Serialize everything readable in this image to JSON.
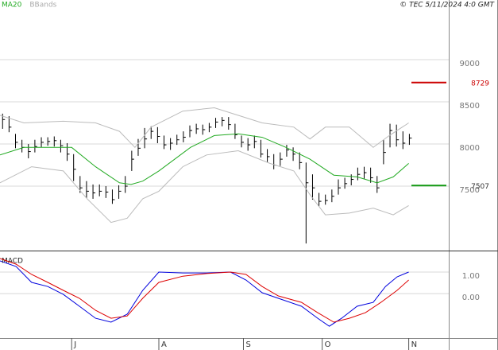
{
  "header": {
    "text": "© TEC 5/11/2024 4:0 GMT"
  },
  "chart_data": [
    {
      "type": "ohlc",
      "color": "#000000",
      "close": [
        8290,
        8200,
        8020,
        7960,
        7910,
        7970,
        8020,
        8030,
        8040,
        7980,
        7880,
        7700,
        7480,
        7440,
        7420,
        7440,
        7430,
        7340,
        7440,
        7500,
        7820,
        7950,
        8060,
        8150,
        8090,
        7990,
        8010,
        8050,
        8080,
        8160,
        8180,
        8170,
        8200,
        8260,
        8280,
        8230,
        8110,
        8020,
        7990,
        8030,
        7880,
        7850,
        7750,
        7820,
        7930,
        7880,
        7780,
        7540,
        7480,
        7320,
        7330,
        7380,
        7480,
        7530,
        7580,
        7640,
        7660,
        7600,
        7480,
        7900,
        8160,
        8050,
        8010,
        8070
      ],
      "high": [
        8360,
        8330,
        8120,
        8050,
        8000,
        8050,
        8080,
        8080,
        8090,
        8050,
        8010,
        7880,
        7620,
        7560,
        7520,
        7520,
        7500,
        7460,
        7510,
        7620,
        7920,
        8060,
        8190,
        8210,
        8200,
        8100,
        8070,
        8110,
        8150,
        8220,
        8240,
        8230,
        8250,
        8310,
        8320,
        8320,
        8240,
        8100,
        8070,
        8100,
        8050,
        7940,
        7880,
        7900,
        7990,
        7960,
        7900,
        7780,
        7640,
        7420,
        7400,
        7460,
        7580,
        7600,
        7640,
        7720,
        7730,
        7720,
        7620,
        8050,
        8240,
        8230,
        8150,
        8120
      ],
      "low": [
        8180,
        8140,
        7950,
        7900,
        7830,
        7900,
        7960,
        7980,
        7970,
        7900,
        7800,
        7560,
        7420,
        7360,
        7350,
        7380,
        7360,
        7290,
        7350,
        7420,
        7680,
        7860,
        7950,
        8060,
        8010,
        7940,
        7930,
        7990,
        8020,
        8080,
        8120,
        8110,
        8140,
        8190,
        8210,
        8170,
        8060,
        7960,
        7920,
        7950,
        7840,
        7780,
        7700,
        7740,
        7850,
        7800,
        7700,
        6820,
        7340,
        7260,
        7280,
        7310,
        7400,
        7470,
        7510,
        7570,
        7590,
        7540,
        7420,
        7760,
        7960,
        7970,
        7940,
        7990
      ],
      "overlays": [
        {
          "name": "MA20",
          "color": "#22aa22",
          "x": [
            -0.4,
            3.3,
            10.7,
            14.4,
            18.1,
            19.9,
            21.7,
            24.2,
            29.1,
            32.8,
            36.5,
            40.2,
            43.9,
            47.6,
            51.3,
            54.9,
            58,
            60.5,
            62.9
          ],
          "values": [
            7870,
            7960,
            7960,
            7730,
            7540,
            7520,
            7560,
            7680,
            7960,
            8100,
            8120,
            8080,
            7960,
            7820,
            7630,
            7610,
            7540,
            7610,
            7770
          ]
        },
        {
          "name": "BBands",
          "color": "#bbbbbb",
          "x": [
            -0.4,
            3.3,
            9.4,
            14.4,
            18.1,
            20.5,
            23,
            27.9,
            32.8,
            36.5,
            40.2,
            45.1,
            47.6,
            50,
            53.7,
            57.4,
            59.9,
            62.9
          ],
          "values": [
            8340,
            8250,
            8270,
            8250,
            8150,
            7960,
            8200,
            8390,
            8430,
            8340,
            8250,
            8200,
            8060,
            8200,
            8200,
            7960,
            8100,
            8250
          ]
        },
        {
          "color": "#bbbbbb",
          "x": [
            -0.4,
            4.5,
            9.4,
            13.1,
            16.8,
            19.3,
            21.7,
            24.2,
            27.9,
            31.6,
            36.5,
            41.4,
            45.1,
            47.6,
            50,
            53.7,
            57.4,
            60.5,
            62.9
          ],
          "values": [
            7540,
            7730,
            7680,
            7350,
            7070,
            7120,
            7350,
            7440,
            7730,
            7870,
            7920,
            7770,
            7680,
            7400,
            7160,
            7180,
            7240,
            7160,
            7270
          ]
        }
      ],
      "levels": [
        {
          "value": 8729,
          "color": "#cc0000"
        },
        {
          "value": 7507,
          "color": "#119911"
        }
      ],
      "xlim": [
        -0.4,
        69.1
      ],
      "ylim": [
        6736,
        9708
      ],
      "yticks": [
        7500,
        8000,
        8500,
        9000
      ],
      "grid": true
    },
    {
      "type": "line",
      "series": [
        {
          "name": "MACD",
          "color": "#0000dd",
          "x": [
            -0.4,
            2.1,
            4.5,
            7,
            9.4,
            11.9,
            14.4,
            16.8,
            19.3,
            21.7,
            24.2,
            27.9,
            31.6,
            35.3,
            37.7,
            40.2,
            42.7,
            46.3,
            48.8,
            50.6,
            52.5,
            54.9,
            57.4,
            59.3,
            61.1,
            62.9
          ],
          "values": [
            1.52,
            1.26,
            0.52,
            0.33,
            -0.04,
            -0.59,
            -1.15,
            -1.33,
            -0.96,
            0.15,
            1.0,
            0.96,
            0.96,
            1.0,
            0.63,
            0.04,
            -0.22,
            -0.59,
            -1.15,
            -1.52,
            -1.15,
            -0.59,
            -0.41,
            0.33,
            0.78,
            1.0
          ]
        },
        {
          "color": "#dd0000",
          "x": [
            -0.4,
            2.1,
            4.5,
            7,
            9.4,
            11.9,
            14.4,
            16.8,
            19.3,
            21.7,
            24.2,
            27.9,
            31.6,
            35.3,
            37.7,
            40.2,
            42.7,
            46.3,
            48.8,
            51.3,
            53.7,
            56.2,
            58.6,
            61.1,
            62.9
          ],
          "values": [
            1.63,
            1.37,
            0.89,
            0.52,
            0.15,
            -0.22,
            -0.78,
            -1.15,
            -1.04,
            -0.22,
            0.52,
            0.81,
            0.93,
            1.0,
            0.89,
            0.33,
            -0.11,
            -0.41,
            -0.89,
            -1.33,
            -1.15,
            -0.89,
            -0.41,
            0.15,
            0.63
          ]
        }
      ],
      "xlim": [
        -0.4,
        69.1
      ],
      "ylim": [
        -2.07,
        1.89
      ],
      "yticks": [
        {
          "value": 1,
          "label": "1.00"
        },
        {
          "value": 0,
          "label": "0.00"
        }
      ],
      "grid": true,
      "xticks": [
        {
          "value": 10.7,
          "label": "J"
        },
        {
          "value": 24.2,
          "label": "A"
        },
        {
          "value": 37.3,
          "label": "S"
        },
        {
          "value": 49.5,
          "label": "O"
        },
        {
          "value": 62.9,
          "label": "N"
        }
      ]
    }
  ]
}
